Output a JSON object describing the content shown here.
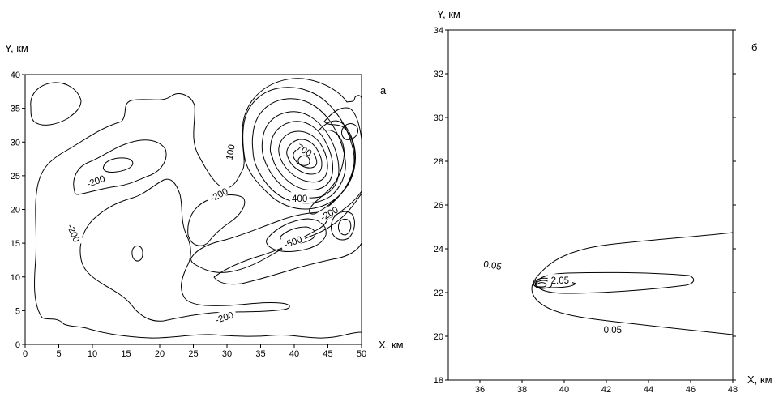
{
  "chart_data": [
    {
      "type": "contour",
      "panel_label": "а",
      "xlabel": "X, км",
      "ylabel": "Y, км",
      "xlim": [
        0,
        50
      ],
      "ylim": [
        0,
        40
      ],
      "x_ticks": [
        0,
        5,
        10,
        15,
        20,
        25,
        30,
        35,
        40,
        45,
        50
      ],
      "y_ticks": [
        0,
        5,
        10,
        15,
        20,
        25,
        30,
        35,
        40
      ],
      "contour_labels": [
        {
          "text": "100",
          "x": 30.5,
          "y": 28.5,
          "angle": 80
        },
        {
          "text": "700",
          "x": 41.5,
          "y": 28.8,
          "angle": -30
        },
        {
          "text": "-200",
          "x": 10.5,
          "y": 24.2,
          "angle": 20
        },
        {
          "text": "-200",
          "x": 28.8,
          "y": 22.2,
          "angle": 28
        },
        {
          "text": "400",
          "x": 40.8,
          "y": 21.6,
          "angle": 0
        },
        {
          "text": "-200",
          "x": 7.2,
          "y": 16.5,
          "angle": -68
        },
        {
          "text": "-200",
          "x": 45.2,
          "y": 19.4,
          "angle": 30
        },
        {
          "text": "-500",
          "x": 39.8,
          "y": 15.2,
          "angle": 20
        },
        {
          "text": "-200",
          "x": 29.6,
          "y": 4.0,
          "angle": 18
        }
      ]
    },
    {
      "type": "contour",
      "panel_label": "б",
      "xlabel": "X, км",
      "ylabel": "Y, км",
      "xlim": [
        34.5,
        48
      ],
      "ylim": [
        18,
        34
      ],
      "x_ticks": [
        36,
        38,
        40,
        42,
        44,
        46,
        48
      ],
      "y_ticks": [
        18,
        20,
        22,
        24,
        26,
        28,
        30,
        32,
        34
      ],
      "contour_labels": [
        {
          "text": "0.05",
          "x": 36.6,
          "y": 23.25,
          "angle": -10
        },
        {
          "text": "2.05",
          "x": 39.8,
          "y": 22.55,
          "angle": 0
        },
        {
          "text": "0.05",
          "x": 42.3,
          "y": 20.3,
          "angle": 0
        }
      ]
    }
  ]
}
